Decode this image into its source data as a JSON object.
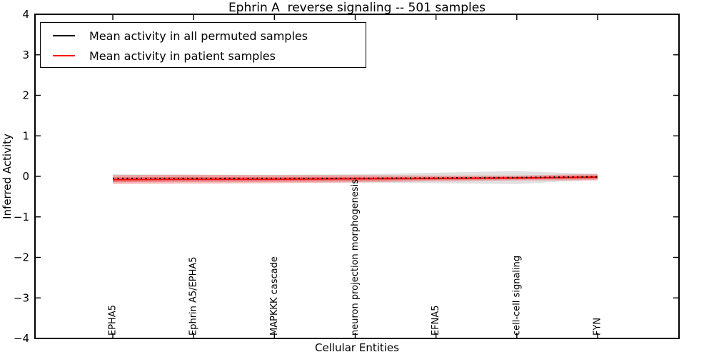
{
  "chart_data": {
    "type": "line",
    "title": "Ephrin A  reverse signaling -- 501 samples",
    "xlabel": "Cellular Entities",
    "ylabel": "Inferred Activity",
    "ylim": [
      -4,
      4
    ],
    "yticks": [
      4,
      3,
      2,
      1,
      0,
      -1,
      -2,
      -3,
      -4
    ],
    "grid": false,
    "legend_position": "upper left",
    "categories": [
      "EPHA5",
      "Ephrin A5/EPHA5",
      "MAPKKK cascade",
      "neuron projection morphogenesis",
      "EFNA5",
      "cell-cell signaling",
      "FYN"
    ],
    "series": [
      {
        "name": "Mean activity in all permuted samples",
        "color": "#000000",
        "line_style": "dotted",
        "band_color": "#999999",
        "values": [
          -0.05,
          -0.05,
          -0.05,
          -0.05,
          -0.04,
          -0.03,
          -0.01
        ],
        "band_upper": [
          0.05,
          0.04,
          0.04,
          0.05,
          0.09,
          0.13,
          0.06
        ],
        "band_lower": [
          -0.15,
          -0.14,
          -0.14,
          -0.15,
          -0.17,
          -0.19,
          -0.08
        ]
      },
      {
        "name": "Mean activity in patient samples",
        "color": "#ff0000",
        "line_style": "solid",
        "band_color": "#ff0000",
        "values": [
          -0.08,
          -0.07,
          -0.07,
          -0.06,
          -0.05,
          -0.04,
          -0.02
        ],
        "band_upper": [
          0.03,
          0.04,
          0.03,
          0.03,
          0.02,
          0.02,
          0.06
        ],
        "band_lower": [
          -0.19,
          -0.18,
          -0.17,
          -0.15,
          -0.12,
          -0.1,
          -0.1
        ]
      }
    ]
  }
}
